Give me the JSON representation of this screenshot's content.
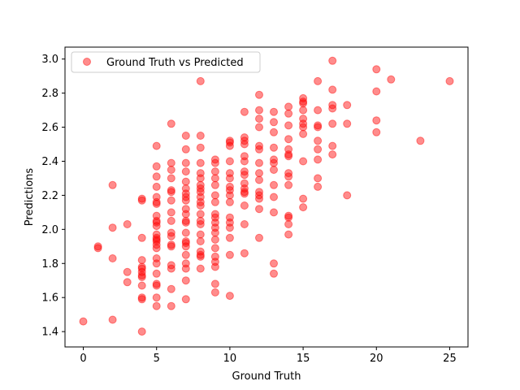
{
  "chart_data": {
    "type": "scatter",
    "title": "",
    "xlabel": "Ground Truth",
    "ylabel": "Predictions",
    "xlim": [
      -1.25,
      26.25
    ],
    "ylim": [
      1.31,
      3.07
    ],
    "xticks": [
      0,
      5,
      10,
      15,
      20,
      25
    ],
    "yticks": [
      1.4,
      1.6,
      1.8,
      2.0,
      2.2,
      2.4,
      2.6,
      2.8,
      3.0
    ],
    "grid": false,
    "legend": {
      "placement": "top-left"
    },
    "series": [
      {
        "name": "Ground Truth vs Predicted",
        "color": "#ff0000",
        "alpha": 0.45,
        "points": [
          [
            0,
            1.46
          ],
          [
            1,
            1.9
          ],
          [
            1,
            1.89
          ],
          [
            2,
            1.47
          ],
          [
            2,
            1.83
          ],
          [
            2,
            2.01
          ],
          [
            2,
            2.26
          ],
          [
            3,
            1.69
          ],
          [
            3,
            1.75
          ],
          [
            3,
            2.03
          ],
          [
            4,
            1.4
          ],
          [
            4,
            1.59
          ],
          [
            4,
            1.6
          ],
          [
            4,
            1.67
          ],
          [
            4,
            1.72
          ],
          [
            4,
            1.73
          ],
          [
            4,
            1.75
          ],
          [
            4,
            1.77
          ],
          [
            4,
            1.78
          ],
          [
            4,
            1.82
          ],
          [
            4,
            1.95
          ],
          [
            4,
            2.17
          ],
          [
            4,
            2.18
          ],
          [
            5,
            1.55
          ],
          [
            5,
            1.6
          ],
          [
            5,
            1.67
          ],
          [
            5,
            1.68
          ],
          [
            5,
            1.74
          ],
          [
            5,
            1.8
          ],
          [
            5,
            1.83
          ],
          [
            5,
            1.89
          ],
          [
            5,
            1.91
          ],
          [
            5,
            1.93
          ],
          [
            5,
            1.94
          ],
          [
            5,
            1.95
          ],
          [
            5,
            1.97
          ],
          [
            5,
            2.02
          ],
          [
            5,
            2.04
          ],
          [
            5,
            2.05
          ],
          [
            5,
            2.08
          ],
          [
            5,
            2.15
          ],
          [
            5,
            2.16
          ],
          [
            5,
            2.19
          ],
          [
            5,
            2.25
          ],
          [
            5,
            2.31
          ],
          [
            5,
            2.37
          ],
          [
            5,
            2.49
          ],
          [
            6,
            1.55
          ],
          [
            6,
            1.65
          ],
          [
            6,
            1.77
          ],
          [
            6,
            1.79
          ],
          [
            6,
            1.9
          ],
          [
            6,
            1.91
          ],
          [
            6,
            1.96
          ],
          [
            6,
            1.98
          ],
          [
            6,
            2.05
          ],
          [
            6,
            2.1
          ],
          [
            6,
            2.17
          ],
          [
            6,
            2.22
          ],
          [
            6,
            2.23
          ],
          [
            6,
            2.3
          ],
          [
            6,
            2.35
          ],
          [
            6,
            2.39
          ],
          [
            6,
            2.62
          ],
          [
            7,
            1.59
          ],
          [
            7,
            1.7
          ],
          [
            7,
            1.77
          ],
          [
            7,
            1.8
          ],
          [
            7,
            1.85
          ],
          [
            7,
            1.9
          ],
          [
            7,
            1.92
          ],
          [
            7,
            1.93
          ],
          [
            7,
            1.98
          ],
          [
            7,
            2.04
          ],
          [
            7,
            2.05
          ],
          [
            7,
            2.09
          ],
          [
            7,
            2.12
          ],
          [
            7,
            2.17
          ],
          [
            7,
            2.19
          ],
          [
            7,
            2.21
          ],
          [
            7,
            2.24
          ],
          [
            7,
            2.28
          ],
          [
            7,
            2.34
          ],
          [
            7,
            2.39
          ],
          [
            7,
            2.47
          ],
          [
            7,
            2.55
          ],
          [
            8,
            1.77
          ],
          [
            8,
            1.84
          ],
          [
            8,
            1.85
          ],
          [
            8,
            1.87
          ],
          [
            8,
            1.93
          ],
          [
            8,
            1.97
          ],
          [
            8,
            2.03
          ],
          [
            8,
            2.05
          ],
          [
            8,
            2.09
          ],
          [
            8,
            2.14
          ],
          [
            8,
            2.16
          ],
          [
            8,
            2.19
          ],
          [
            8,
            2.22
          ],
          [
            8,
            2.24
          ],
          [
            8,
            2.26
          ],
          [
            8,
            2.3
          ],
          [
            8,
            2.33
          ],
          [
            8,
            2.39
          ],
          [
            8,
            2.48
          ],
          [
            8,
            2.55
          ],
          [
            8,
            2.87
          ],
          [
            9,
            1.63
          ],
          [
            9,
            1.68
          ],
          [
            9,
            1.78
          ],
          [
            9,
            1.81
          ],
          [
            9,
            1.84
          ],
          [
            9,
            1.89
          ],
          [
            9,
            1.94
          ],
          [
            9,
            1.98
          ],
          [
            9,
            2.01
          ],
          [
            9,
            2.04
          ],
          [
            9,
            2.07
          ],
          [
            9,
            2.09
          ],
          [
            9,
            2.16
          ],
          [
            9,
            2.2
          ],
          [
            9,
            2.26
          ],
          [
            9,
            2.3
          ],
          [
            9,
            2.34
          ],
          [
            9,
            2.39
          ],
          [
            9,
            2.41
          ],
          [
            10,
            1.61
          ],
          [
            10,
            1.85
          ],
          [
            10,
            1.95
          ],
          [
            10,
            2.01
          ],
          [
            10,
            2.04
          ],
          [
            10,
            2.07
          ],
          [
            10,
            2.16
          ],
          [
            10,
            2.2
          ],
          [
            10,
            2.23
          ],
          [
            10,
            2.25
          ],
          [
            10,
            2.3
          ],
          [
            10,
            2.33
          ],
          [
            10,
            2.4
          ],
          [
            10,
            2.49
          ],
          [
            10,
            2.51
          ],
          [
            10,
            2.52
          ],
          [
            11,
            1.86
          ],
          [
            11,
            2.03
          ],
          [
            11,
            2.14
          ],
          [
            11,
            2.21
          ],
          [
            11,
            2.22
          ],
          [
            11,
            2.24
          ],
          [
            11,
            2.27
          ],
          [
            11,
            2.32
          ],
          [
            11,
            2.34
          ],
          [
            11,
            2.4
          ],
          [
            11,
            2.43
          ],
          [
            11,
            2.5
          ],
          [
            11,
            2.52
          ],
          [
            11,
            2.54
          ],
          [
            11,
            2.69
          ],
          [
            12,
            1.95
          ],
          [
            12,
            2.12
          ],
          [
            12,
            2.18
          ],
          [
            12,
            2.2
          ],
          [
            12,
            2.22
          ],
          [
            12,
            2.29
          ],
          [
            12,
            2.33
          ],
          [
            12,
            2.39
          ],
          [
            12,
            2.47
          ],
          [
            12,
            2.49
          ],
          [
            12,
            2.6
          ],
          [
            12,
            2.65
          ],
          [
            12,
            2.7
          ],
          [
            12,
            2.79
          ],
          [
            13,
            1.74
          ],
          [
            13,
            1.8
          ],
          [
            13,
            2.1
          ],
          [
            13,
            2.19
          ],
          [
            13,
            2.26
          ],
          [
            13,
            2.35
          ],
          [
            13,
            2.39
          ],
          [
            13,
            2.41
          ],
          [
            13,
            2.48
          ],
          [
            13,
            2.57
          ],
          [
            13,
            2.63
          ],
          [
            13,
            2.69
          ],
          [
            14,
            1.97
          ],
          [
            14,
            2.03
          ],
          [
            14,
            2.07
          ],
          [
            14,
            2.08
          ],
          [
            14,
            2.26
          ],
          [
            14,
            2.31
          ],
          [
            14,
            2.33
          ],
          [
            14,
            2.43
          ],
          [
            14,
            2.44
          ],
          [
            14,
            2.47
          ],
          [
            14,
            2.53
          ],
          [
            14,
            2.61
          ],
          [
            14,
            2.68
          ],
          [
            14,
            2.72
          ],
          [
            15,
            2.13
          ],
          [
            15,
            2.18
          ],
          [
            15,
            2.4
          ],
          [
            15,
            2.56
          ],
          [
            15,
            2.6
          ],
          [
            15,
            2.62
          ],
          [
            15,
            2.65
          ],
          [
            15,
            2.7
          ],
          [
            15,
            2.74
          ],
          [
            15,
            2.75
          ],
          [
            15,
            2.77
          ],
          [
            16,
            2.25
          ],
          [
            16,
            2.3
          ],
          [
            16,
            2.41
          ],
          [
            16,
            2.47
          ],
          [
            16,
            2.52
          ],
          [
            16,
            2.6
          ],
          [
            16,
            2.61
          ],
          [
            16,
            2.7
          ],
          [
            16,
            2.87
          ],
          [
            17,
            2.44
          ],
          [
            17,
            2.49
          ],
          [
            17,
            2.62
          ],
          [
            17,
            2.71
          ],
          [
            17,
            2.73
          ],
          [
            17,
            2.82
          ],
          [
            17,
            2.99
          ],
          [
            18,
            2.2
          ],
          [
            18,
            2.62
          ],
          [
            18,
            2.73
          ],
          [
            20,
            2.57
          ],
          [
            20,
            2.64
          ],
          [
            20,
            2.81
          ],
          [
            20,
            2.94
          ],
          [
            21,
            2.88
          ],
          [
            23,
            2.52
          ],
          [
            25,
            2.87
          ]
        ]
      }
    ]
  }
}
